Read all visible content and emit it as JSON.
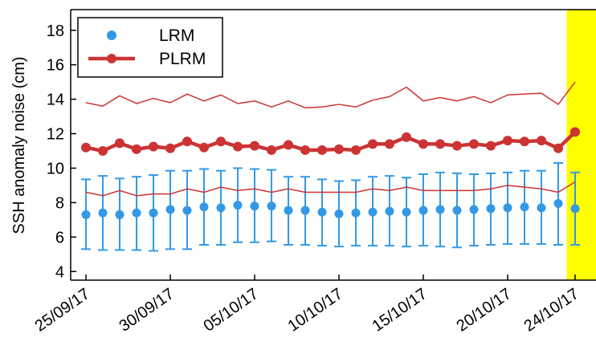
{
  "chart_data": {
    "type": "line",
    "ylabel": "SSH anomaly noise (cm)",
    "xlabel": "",
    "ylim": [
      3.5,
      19.2
    ],
    "yticks": [
      4,
      6,
      8,
      10,
      12,
      14,
      16,
      18
    ],
    "x_dates": [
      "25/09/17",
      "26/09/17",
      "27/09/17",
      "28/09/17",
      "29/09/17",
      "30/09/17",
      "01/10/17",
      "02/10/17",
      "03/10/17",
      "04/10/17",
      "05/10/17",
      "06/10/17",
      "07/10/17",
      "08/10/17",
      "09/10/17",
      "10/10/17",
      "11/10/17",
      "12/10/17",
      "13/10/17",
      "14/10/17",
      "15/10/17",
      "16/10/17",
      "17/10/17",
      "18/10/17",
      "19/10/17",
      "20/10/17",
      "21/10/17",
      "22/10/17",
      "23/10/17",
      "24/10/17"
    ],
    "xtick_labels": [
      "25/09/17",
      "30/09/17",
      "05/10/17",
      "10/10/17",
      "15/10/17",
      "20/10/17",
      "24/10/17"
    ],
    "highlight_date": "24/10/17",
    "highlight_color": "#ffff00",
    "legend_position": "top-left",
    "grid": false,
    "series": [
      {
        "name": "LRM",
        "color": "#3399e6",
        "marker_only": true,
        "values": [
          7.3,
          7.4,
          7.3,
          7.4,
          7.4,
          7.6,
          7.55,
          7.75,
          7.7,
          7.85,
          7.8,
          7.8,
          7.55,
          7.55,
          7.45,
          7.35,
          7.4,
          7.45,
          7.5,
          7.45,
          7.55,
          7.6,
          7.55,
          7.6,
          7.65,
          7.7,
          7.75,
          7.7,
          7.95,
          7.65
        ],
        "err_low": [
          5.3,
          5.25,
          5.25,
          5.25,
          5.2,
          5.3,
          5.3,
          5.55,
          5.55,
          5.7,
          5.7,
          5.75,
          5.55,
          5.55,
          5.5,
          5.45,
          5.5,
          5.5,
          5.5,
          5.45,
          5.5,
          5.45,
          5.4,
          5.5,
          5.55,
          5.6,
          5.6,
          5.6,
          5.55,
          5.55
        ],
        "err_high": [
          9.35,
          9.55,
          9.4,
          9.5,
          9.6,
          9.85,
          9.85,
          9.95,
          9.85,
          10.0,
          9.95,
          9.9,
          9.5,
          9.5,
          9.35,
          9.25,
          9.3,
          9.5,
          9.55,
          9.45,
          9.65,
          9.75,
          9.7,
          9.65,
          9.7,
          9.75,
          9.85,
          9.85,
          10.3,
          9.75
        ]
      },
      {
        "name": "",
        "color": "#cc3333",
        "thin_line": true,
        "values": [
          8.6,
          8.4,
          8.7,
          8.4,
          8.5,
          8.5,
          8.8,
          8.6,
          8.9,
          8.7,
          8.8,
          8.6,
          8.8,
          8.6,
          8.6,
          8.6,
          8.6,
          8.8,
          8.7,
          8.9,
          8.7,
          8.7,
          8.7,
          8.7,
          8.8,
          9.0,
          8.9,
          8.8,
          8.6,
          9.2
        ]
      },
      {
        "name": "PLRM",
        "color": "#cc3333",
        "values": [
          11.2,
          11.0,
          11.45,
          11.1,
          11.25,
          11.15,
          11.55,
          11.2,
          11.55,
          11.25,
          11.3,
          11.05,
          11.35,
          11.05,
          11.05,
          11.1,
          11.05,
          11.4,
          11.4,
          11.8,
          11.4,
          11.4,
          11.3,
          11.4,
          11.3,
          11.6,
          11.55,
          11.6,
          11.15,
          12.1
        ]
      },
      {
        "name": "",
        "color": "#cc3333",
        "thin_line": true,
        "values": [
          13.8,
          13.6,
          14.2,
          13.75,
          14.05,
          13.8,
          14.3,
          13.9,
          14.25,
          13.75,
          13.9,
          13.55,
          13.9,
          13.5,
          13.55,
          13.7,
          13.55,
          13.95,
          14.15,
          14.7,
          13.9,
          14.1,
          13.9,
          14.15,
          13.8,
          14.25,
          14.3,
          14.35,
          13.7,
          15.0
        ]
      }
    ]
  }
}
